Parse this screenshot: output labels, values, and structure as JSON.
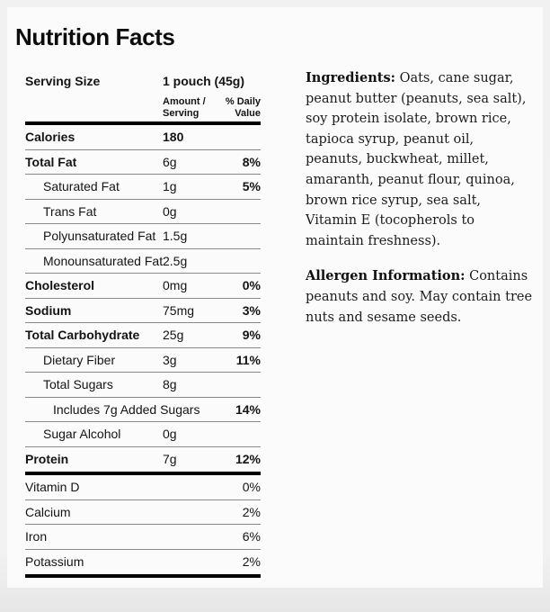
{
  "title": "Nutrition Facts",
  "table": {
    "serving_size_label": "Serving Size",
    "serving_size_value": "1 pouch (45g)",
    "amount_header_line1": "Amount /",
    "amount_header_line2": "Serving",
    "dv_header_line1": "% Daily",
    "dv_header_line2": "Value",
    "rows": [
      {
        "label": "Calories",
        "amount": "180",
        "dv": "",
        "indent": 0,
        "label_bold": true,
        "amount_bold": true,
        "dv_bold": false
      },
      {
        "label": "Total Fat",
        "amount": "6g",
        "dv": "8%",
        "indent": 0,
        "label_bold": true,
        "amount_bold": false,
        "dv_bold": true
      },
      {
        "label": "Saturated Fat",
        "amount": "1g",
        "dv": "5%",
        "indent": 1,
        "label_bold": false,
        "amount_bold": false,
        "dv_bold": true
      },
      {
        "label": "Trans Fat",
        "amount": "0g",
        "dv": "",
        "indent": 1,
        "label_bold": false,
        "amount_bold": false,
        "dv_bold": false
      },
      {
        "label": "Polyunsaturated Fat",
        "amount": "1.5g",
        "dv": "",
        "indent": 1,
        "label_bold": false,
        "amount_bold": false,
        "dv_bold": false
      },
      {
        "label": "Monounsaturated Fat",
        "amount": "2.5g",
        "dv": "",
        "indent": 1,
        "label_bold": false,
        "amount_bold": false,
        "dv_bold": false
      },
      {
        "label": "Cholesterol",
        "amount": "0mg",
        "dv": "0%",
        "indent": 0,
        "label_bold": true,
        "amount_bold": false,
        "dv_bold": true
      },
      {
        "label": "Sodium",
        "amount": "75mg",
        "dv": "3%",
        "indent": 0,
        "label_bold": true,
        "amount_bold": false,
        "dv_bold": true
      },
      {
        "label": "Total Carbohydrate",
        "amount": "25g",
        "dv": "9%",
        "indent": 0,
        "label_bold": true,
        "amount_bold": false,
        "dv_bold": true
      },
      {
        "label": "Dietary Fiber",
        "amount": "3g",
        "dv": "11%",
        "indent": 1,
        "label_bold": false,
        "amount_bold": false,
        "dv_bold": true
      },
      {
        "label": "Total Sugars",
        "amount": "8g",
        "dv": "",
        "indent": 1,
        "label_bold": false,
        "amount_bold": false,
        "dv_bold": false
      },
      {
        "label": "Includes 7g Added Sugars",
        "amount": "",
        "dv": "14%",
        "indent": 2,
        "label_bold": false,
        "amount_bold": false,
        "dv_bold": true
      },
      {
        "label": "Sugar Alcohol",
        "amount": "0g",
        "dv": "",
        "indent": 1,
        "label_bold": false,
        "amount_bold": false,
        "dv_bold": false
      },
      {
        "label": "Protein",
        "amount": "7g",
        "dv": "12%",
        "indent": 0,
        "label_bold": true,
        "amount_bold": false,
        "dv_bold": true
      }
    ],
    "micronutrients": [
      {
        "label": "Vitamin D",
        "dv": "0%"
      },
      {
        "label": "Calcium",
        "dv": "2%"
      },
      {
        "label": "Iron",
        "dv": "6%"
      },
      {
        "label": "Potassium",
        "dv": "2%"
      }
    ]
  },
  "ingredients": {
    "label": "Ingredients:",
    "text": " Oats, cane sugar, peanut butter (peanuts, sea salt), soy protein isolate, brown rice, tapioca syrup, peanut oil, peanuts, buckwheat, millet, amaranth, peanut flour, quinoa, brown rice syrup, sea salt, Vitamin E (tocopherols to maintain freshness)."
  },
  "allergen": {
    "label": "Allergen Information:",
    "text": " Contains peanuts and soy. May contain tree nuts and sesame seeds."
  },
  "colors": {
    "card_background": "#fbfbfb",
    "page_background": "#f1f1f1",
    "text": "#141414",
    "divider_thin": "#8a8a8a",
    "divider_thick": "#000000"
  }
}
